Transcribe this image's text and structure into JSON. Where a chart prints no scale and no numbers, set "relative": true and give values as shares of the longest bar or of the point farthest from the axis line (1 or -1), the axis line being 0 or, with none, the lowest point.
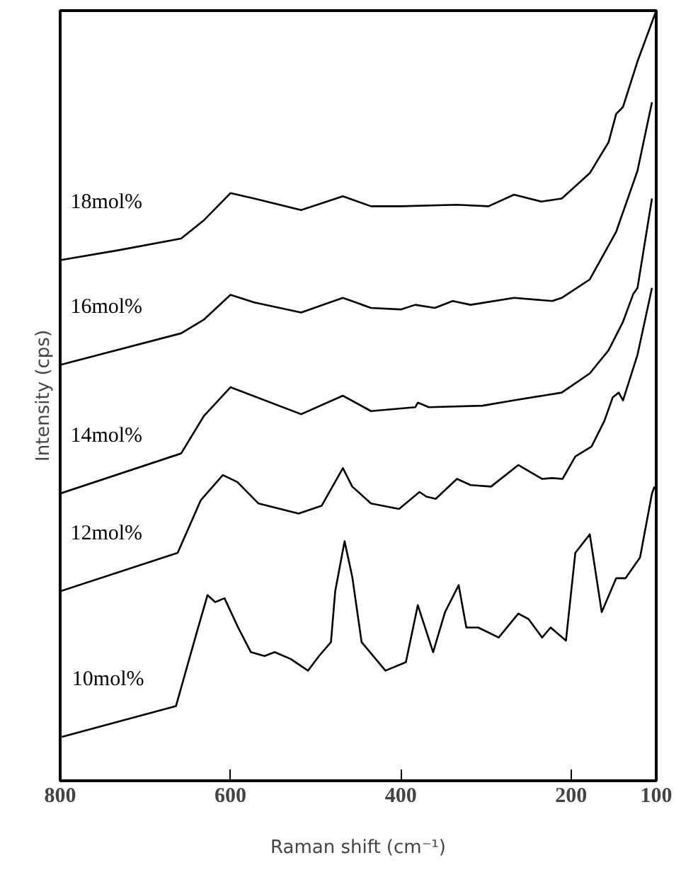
{
  "chart_data": {
    "type": "line",
    "relative": true,
    "xlabel": "Raman shift (cm⁻¹)",
    "ylabel": "Intensity (cps)",
    "xlim": [
      800,
      100
    ],
    "xticks": [
      800,
      600,
      400,
      200,
      100
    ],
    "grid": false,
    "legend": false,
    "marker": "none",
    "line_style": "solid",
    "series": [
      {
        "name": "18mol%",
        "color": "#000000",
        "x": [
          800,
          731,
          658,
          631,
          600,
          572,
          517,
          468,
          435,
          400,
          334,
          297,
          267,
          235,
          211,
          178,
          156,
          147,
          139,
          122,
          100
        ],
        "values": [
          0.676,
          0.689,
          0.704,
          0.728,
          0.763,
          0.756,
          0.741,
          0.759,
          0.746,
          0.746,
          0.748,
          0.746,
          0.761,
          0.752,
          0.756,
          0.789,
          0.829,
          0.866,
          0.875,
          0.934,
          1.0
        ]
      },
      {
        "name": "16mol%",
        "color": "#000000",
        "x": [
          800,
          658,
          631,
          600,
          572,
          517,
          468,
          435,
          400,
          383,
          360,
          339,
          318,
          267,
          222,
          211,
          178,
          147,
          122,
          105
        ],
        "values": [
          0.54,
          0.581,
          0.599,
          0.631,
          0.621,
          0.608,
          0.627,
          0.614,
          0.612,
          0.618,
          0.614,
          0.623,
          0.618,
          0.627,
          0.623,
          0.627,
          0.651,
          0.713,
          0.792,
          0.881
        ]
      },
      {
        "name": "14mol%",
        "color": "#000000",
        "x": [
          800,
          658,
          631,
          600,
          517,
          468,
          435,
          383,
          380,
          367,
          304,
          267,
          211,
          178,
          156,
          139,
          127,
          122,
          105
        ],
        "values": [
          0.373,
          0.425,
          0.474,
          0.511,
          0.476,
          0.5,
          0.48,
          0.485,
          0.491,
          0.485,
          0.487,
          0.494,
          0.504,
          0.529,
          0.559,
          0.596,
          0.632,
          0.64,
          0.756
        ]
      },
      {
        "name": "12mol%",
        "color": "#000000",
        "x": [
          800,
          662,
          635,
          609,
          592,
          567,
          520,
          493,
          468,
          457,
          435,
          402,
          378,
          370,
          359,
          334,
          318,
          294,
          262,
          234,
          222,
          210,
          195,
          176,
          161,
          151,
          144,
          139,
          122,
          105
        ],
        "values": [
          0.246,
          0.296,
          0.364,
          0.397,
          0.388,
          0.36,
          0.347,
          0.357,
          0.406,
          0.382,
          0.36,
          0.353,
          0.375,
          0.369,
          0.366,
          0.392,
          0.384,
          0.382,
          0.41,
          0.392,
          0.393,
          0.392,
          0.421,
          0.434,
          0.467,
          0.498,
          0.504,
          0.494,
          0.553,
          0.64
        ]
      },
      {
        "name": "10mol%",
        "color": "#000000",
        "x": [
          798,
          664,
          640,
          627,
          618,
          607,
          591,
          576,
          560,
          548,
          529,
          509,
          496,
          482,
          477,
          466,
          457,
          446,
          418,
          394,
          380,
          362,
          348,
          332,
          323,
          309,
          285,
          262,
          250,
          234,
          224,
          206,
          195,
          178,
          164,
          147,
          136,
          119,
          105,
          102
        ],
        "values": [
          0.057,
          0.097,
          0.191,
          0.241,
          0.232,
          0.237,
          0.199,
          0.167,
          0.162,
          0.167,
          0.158,
          0.143,
          0.162,
          0.18,
          0.246,
          0.311,
          0.265,
          0.18,
          0.143,
          0.154,
          0.228,
          0.167,
          0.219,
          0.254,
          0.199,
          0.199,
          0.186,
          0.217,
          0.21,
          0.186,
          0.199,
          0.182,
          0.296,
          0.32,
          0.219,
          0.263,
          0.263,
          0.29,
          0.373,
          0.382
        ]
      }
    ]
  }
}
